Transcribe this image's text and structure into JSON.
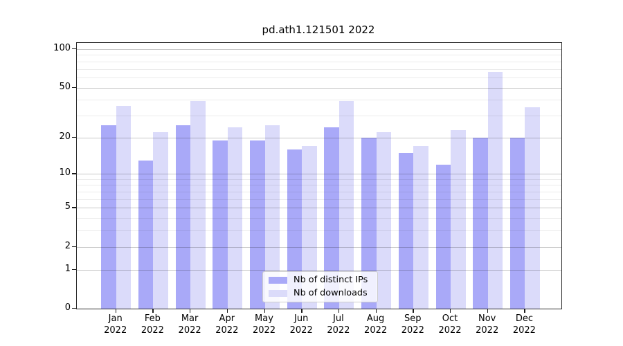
{
  "page": {
    "title": "pd.ath1.121501 2022"
  },
  "chart_data": {
    "type": "bar",
    "title": "pd.ath1.121501 2022",
    "categories": [
      "Jan",
      "Feb",
      "Mar",
      "Apr",
      "May",
      "Jun",
      "Jul",
      "Aug",
      "Sep",
      "Oct",
      "Nov",
      "Dec"
    ],
    "category_year": "2022",
    "series": [
      {
        "name": "Nb of distinct IPs",
        "color": "#a9a9f8",
        "values": [
          25,
          13,
          25,
          19,
          19,
          16,
          24,
          20,
          15,
          12,
          20,
          20
        ]
      },
      {
        "name": "Nb of downloads",
        "color": "#dbdbfa",
        "values": [
          36,
          22,
          39,
          24,
          25,
          17,
          39,
          22,
          17,
          23,
          66,
          35
        ]
      }
    ],
    "xlabel": "",
    "ylabel": "",
    "y_axis": {
      "scale": "log(1+x)",
      "major_ticks": [
        0,
        1,
        2,
        5,
        10,
        20,
        50,
        100
      ],
      "minor_ticks": [
        3,
        4,
        6,
        7,
        8,
        9,
        30,
        40,
        60,
        70,
        80,
        90
      ],
      "range": [
        0,
        113
      ]
    },
    "grid": "on",
    "legend": {
      "position": "lower center",
      "entries": [
        "Nb of distinct IPs",
        "Nb of downloads"
      ]
    },
    "colors": {
      "axis": "#2b2b2b",
      "grid_major": "#c9c9c9",
      "grid_minor": "#e9e9e9"
    }
  }
}
